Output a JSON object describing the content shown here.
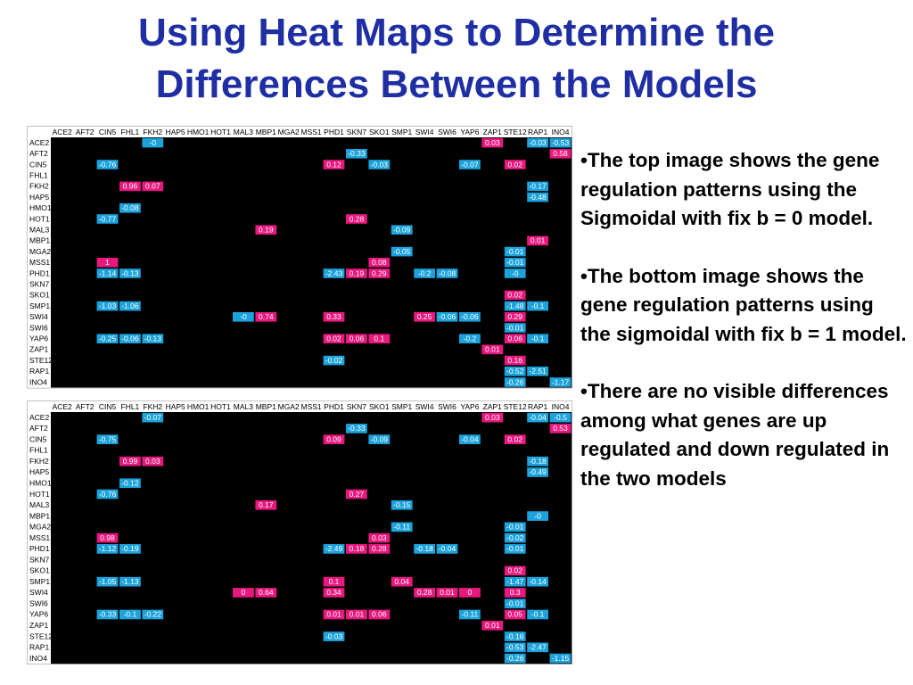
{
  "title": "Using Heat Maps to Determine the Differences Between the Models",
  "heatmaps": [
    {
      "columns": [
        "ACE2",
        "AFT2",
        "CIN5",
        "FHL1",
        "FKH2",
        "HAP5",
        "HMO1",
        "HOT1",
        "MAL3",
        "MBP1",
        "MGA2",
        "MSS1",
        "PHD1",
        "SKN7",
        "SKO1",
        "SMP1",
        "SWI4",
        "SWI6",
        "YAP6",
        "ZAP1",
        "STE12",
        "RAP1",
        "INO4"
      ],
      "rows": [
        {
          "label": "ACE2",
          "cells": {
            "FKH2": "-0",
            "ZAP1": "0.03",
            "RAP1": "-0.03",
            "INO4": "-0.53"
          }
        },
        {
          "label": "AFT2",
          "cells": {
            "SKN7": "-0.33",
            "INO4": "0.58"
          }
        },
        {
          "label": "CIN5",
          "cells": {
            "CIN5": "-0.76",
            "PHD1": "0.12",
            "SKO1": "-0.03",
            "YAP6": "-0.07",
            "STE12": "0.02"
          }
        },
        {
          "label": "FHL1",
          "cells": {}
        },
        {
          "label": "FKH2",
          "cells": {
            "FHL1": "0.96",
            "FKH2": "0.07",
            "RAP1": "-0.17"
          }
        },
        {
          "label": "HAP5",
          "cells": {
            "RAP1": "-0.48"
          }
        },
        {
          "label": "HMO1",
          "cells": {
            "FHL1": "-0.08"
          }
        },
        {
          "label": "HOT1",
          "cells": {
            "CIN5": "-0.77",
            "SKN7": "0.28"
          }
        },
        {
          "label": "MAL3",
          "cells": {
            "MBP1": "0.19",
            "SMP1": "-0.09"
          }
        },
        {
          "label": "MBP1",
          "cells": {
            "RAP1": "0.01"
          }
        },
        {
          "label": "MGA2",
          "cells": {
            "SMP1": "-0.05",
            "STE12": "-0.01"
          }
        },
        {
          "label": "MSS1",
          "cells": {
            "CIN5": "1",
            "SKO1": "0.08",
            "STE12": "-0.01"
          }
        },
        {
          "label": "PHD1",
          "cells": {
            "CIN5": "-1.14",
            "FHL1": "-0.13",
            "PHD1": "-2.43",
            "SKN7": "0.19",
            "SKO1": "0.29",
            "SWI4": "-0.2",
            "SWI6": "-0.08",
            "STE12": "-0"
          }
        },
        {
          "label": "SKN7",
          "cells": {}
        },
        {
          "label": "SKO1",
          "cells": {
            "STE12": "0.02"
          }
        },
        {
          "label": "SMP1",
          "cells": {
            "CIN5": "-1.03",
            "FHL1": "-1.06",
            "STE12": "-1.48",
            "RAP1": "-0.1"
          }
        },
        {
          "label": "SWI4",
          "cells": {
            "MAL3": "-0",
            "MBP1": "0.74",
            "PHD1": "0.33",
            "SWI4": "0.25",
            "SWI6": "-0.06",
            "YAP6": "-0.06",
            "STE12": "0.29"
          }
        },
        {
          "label": "SWI6",
          "cells": {
            "STE12": "-0.01"
          }
        },
        {
          "label": "YAP6",
          "cells": {
            "CIN5": "-0.25",
            "FHL1": "-0.06",
            "FKH2": "-0.13",
            "PHD1": "0.02",
            "SKN7": "0.06",
            "SKO1": "0.1",
            "YAP6": "-0.2",
            "STE12": "0.06",
            "RAP1": "-0.1"
          }
        },
        {
          "label": "ZAP1",
          "cells": {
            "ZAP1": "0.01"
          }
        },
        {
          "label": "STE12",
          "cells": {
            "PHD1": "-0.02",
            "STE12": "0.16"
          }
        },
        {
          "label": "RAP1",
          "cells": {
            "STE12": "-0.52",
            "RAP1": "-2.51"
          }
        },
        {
          "label": "INO4",
          "cells": {
            "STE12": "-0.26",
            "INO4": "-1.17"
          }
        }
      ]
    },
    {
      "columns": [
        "ACE2",
        "AFT2",
        "CIN5",
        "FHL1",
        "FKH2",
        "HAP5",
        "HMO1",
        "HOT1",
        "MAL3",
        "MBP1",
        "MGA2",
        "MSS1",
        "PHD1",
        "SKN7",
        "SKO1",
        "SMP1",
        "SWI4",
        "SWI6",
        "YAP6",
        "ZAP1",
        "STE12",
        "RAP1",
        "INO4"
      ],
      "rows": [
        {
          "label": "ACE2",
          "cells": {
            "FKH2": "-0.07",
            "ZAP1": "0.03",
            "RAP1": "-0.04",
            "INO4": "-0.5"
          }
        },
        {
          "label": "AFT2",
          "cells": {
            "SKN7": "-0.33",
            "INO4": "0.53"
          }
        },
        {
          "label": "CIN5",
          "cells": {
            "CIN5": "-0.75",
            "PHD1": "0.09",
            "SKO1": "-0.09",
            "YAP6": "-0.04",
            "STE12": "0.02"
          }
        },
        {
          "label": "FHL1",
          "cells": {}
        },
        {
          "label": "FKH2",
          "cells": {
            "FHL1": "0.99",
            "FKH2": "0.03",
            "RAP1": "-0.18"
          }
        },
        {
          "label": "HAP5",
          "cells": {
            "RAP1": "-0.49"
          }
        },
        {
          "label": "HMO1",
          "cells": {
            "FHL1": "-0.12"
          }
        },
        {
          "label": "HOT1",
          "cells": {
            "CIN5": "-0.76",
            "SKN7": "0.27"
          }
        },
        {
          "label": "MAL3",
          "cells": {
            "MBP1": "0.17",
            "SMP1": "-0.15"
          }
        },
        {
          "label": "MBP1",
          "cells": {
            "RAP1": "-0"
          }
        },
        {
          "label": "MGA2",
          "cells": {
            "SMP1": "-0.11",
            "STE12": "-0.01"
          }
        },
        {
          "label": "MSS1",
          "cells": {
            "CIN5": "0.98",
            "SKO1": "0.03",
            "STE12": "-0.02"
          }
        },
        {
          "label": "PHD1",
          "cells": {
            "CIN5": "-1.12",
            "FHL1": "-0.19",
            "PHD1": "-2.49",
            "SKN7": "0.18",
            "SKO1": "0.28",
            "SWI4": "-0.18",
            "SWI6": "-0.04",
            "STE12": "-0.01"
          }
        },
        {
          "label": "SKN7",
          "cells": {}
        },
        {
          "label": "SKO1",
          "cells": {
            "STE12": "0.02"
          }
        },
        {
          "label": "SMP1",
          "cells": {
            "CIN5": "-1.05",
            "FHL1": "-1.13",
            "PHD1": "0.1",
            "SMP1": "0.04",
            "STE12": "-1.47",
            "RAP1": "-0.14"
          }
        },
        {
          "label": "SWI4",
          "cells": {
            "MAL3": "0",
            "MBP1": "0.64",
            "PHD1": "0.34",
            "SWI4": "0.28",
            "SWI6": "0.01",
            "YAP6": "0",
            "STE12": "0.3"
          }
        },
        {
          "label": "SWI6",
          "cells": {
            "STE12": "-0.01"
          }
        },
        {
          "label": "YAP6",
          "cells": {
            "CIN5": "-0.33",
            "FHL1": "-0.1",
            "FKH2": "-0.22",
            "PHD1": "0.01",
            "SKN7": "0.01",
            "SKO1": "0.06",
            "YAP6": "-0.11",
            "STE12": "0.05",
            "RAP1": "-0.1"
          }
        },
        {
          "label": "ZAP1",
          "cells": {
            "ZAP1": "0.01"
          }
        },
        {
          "label": "STE12",
          "cells": {
            "PHD1": "-0.03",
            "STE12": "-0.16"
          }
        },
        {
          "label": "RAP1",
          "cells": {
            "STE12": "-0.53",
            "RAP1": "-2.47"
          }
        },
        {
          "label": "INO4",
          "cells": {
            "STE12": "-0.26",
            "INO4": "-1.15"
          }
        }
      ]
    }
  ],
  "bullets": [
    "•The top image shows the gene regulation patterns using the Sigmoidal with fix b = 0 model.",
    "•The bottom image shows the gene regulation patterns using the sigmoidal with fix b = 1 model.",
    "•There are no visible differences among what genes are up regulated and down regulated in the two models"
  ]
}
